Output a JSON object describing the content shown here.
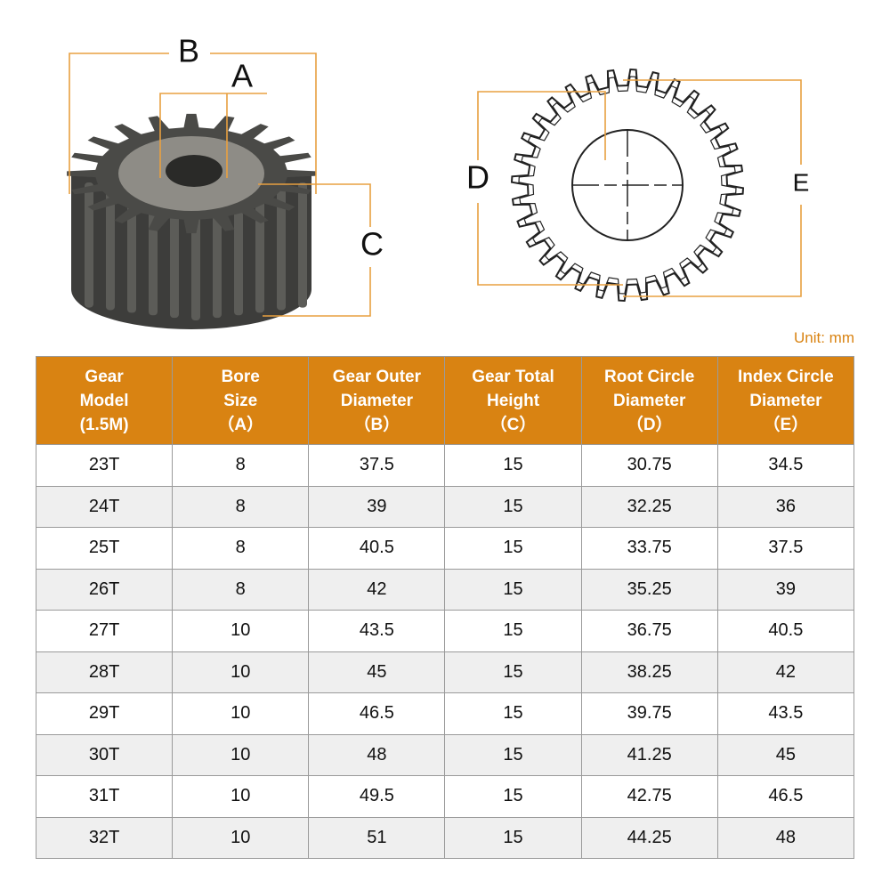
{
  "diagram": {
    "labels": {
      "b": "B",
      "a": "A",
      "c": "C",
      "d": "D",
      "e": "E"
    },
    "unit": "Unit: mm"
  },
  "table": {
    "headers": [
      [
        "Gear",
        "Model",
        "(1.5M)"
      ],
      [
        "Bore",
        "Size",
        "（A）"
      ],
      [
        "Gear Outer",
        "Diameter",
        "（B）"
      ],
      [
        "Gear Total",
        "Height",
        "（C）"
      ],
      [
        "Root Circle",
        "Diameter",
        "（D）"
      ],
      [
        "Index Circle",
        "Diameter",
        "（E）"
      ]
    ],
    "rows": [
      [
        "23T",
        "8",
        "37.5",
        "15",
        "30.75",
        "34.5"
      ],
      [
        "24T",
        "8",
        "39",
        "15",
        "32.25",
        "36"
      ],
      [
        "25T",
        "8",
        "40.5",
        "15",
        "33.75",
        "37.5"
      ],
      [
        "26T",
        "8",
        "42",
        "15",
        "35.25",
        "39"
      ],
      [
        "27T",
        "10",
        "43.5",
        "15",
        "36.75",
        "40.5"
      ],
      [
        "28T",
        "10",
        "45",
        "15",
        "38.25",
        "42"
      ],
      [
        "29T",
        "10",
        "46.5",
        "15",
        "39.75",
        "43.5"
      ],
      [
        "30T",
        "10",
        "48",
        "15",
        "41.25",
        "45"
      ],
      [
        "31T",
        "10",
        "49.5",
        "15",
        "42.75",
        "46.5"
      ],
      [
        "32T",
        "10",
        "51",
        "15",
        "44.25",
        "48"
      ]
    ]
  }
}
